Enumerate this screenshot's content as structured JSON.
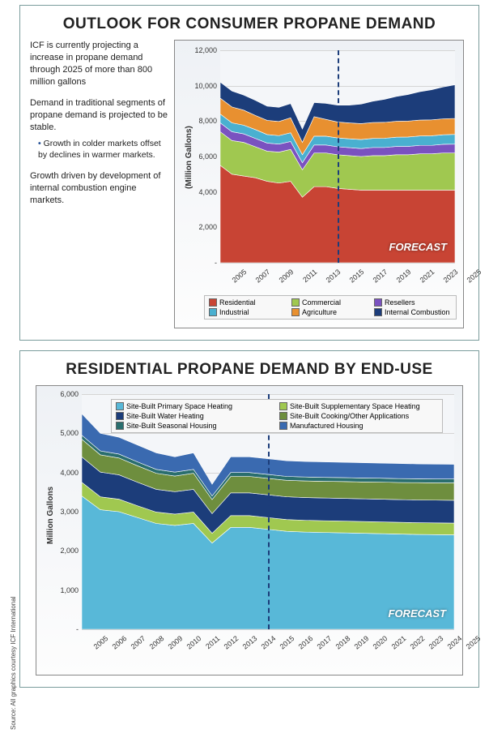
{
  "source_note": "Source: All graphics courtesy ICF International",
  "panel1": {
    "title": "OUTLOOK FOR CONSUMER PROPANE DEMAND",
    "para1": "ICF is currently projecting a increase in propane demand through 2025 of more than 800 million gallons",
    "para2": "Demand in traditional segments of propane demand is projected to be stable.",
    "bullet1": "Growth in colder markets offset by declines in warmer markets.",
    "para3": "Growth driven by development of internal combustion engine markets.",
    "chart": {
      "type": "stacked-area",
      "ylabel": "(Million Gallons)",
      "ylim": [
        0,
        12000
      ],
      "ytick_step": 2000,
      "years": [
        2005,
        2006,
        2007,
        2008,
        2009,
        2010,
        2011,
        2012,
        2013,
        2014,
        2015,
        2016,
        2017,
        2018,
        2019,
        2020,
        2021,
        2022,
        2023,
        2024,
        2025
      ],
      "xtick_years": [
        2005,
        2007,
        2009,
        2011,
        2013,
        2015,
        2017,
        2019,
        2021,
        2023,
        2025
      ],
      "forecast_start_year": 2015,
      "forecast_label": "FORECAST",
      "background_color": "#eef1f5",
      "grid_color": "#d5d5d5",
      "axis_fontsize": 9,
      "label_fontsize": 10,
      "legend_cols": 3,
      "series": [
        {
          "name": "Residential",
          "color": "#c84434",
          "values": [
            5500,
            5000,
            4900,
            4800,
            4600,
            4500,
            4600,
            3700,
            4300,
            4300,
            4200,
            4150,
            4100,
            4100,
            4100,
            4100,
            4100,
            4100,
            4100,
            4100,
            4100
          ]
        },
        {
          "name": "Commercial",
          "color": "#a0c850",
          "values": [
            1900,
            1900,
            1900,
            1750,
            1700,
            1750,
            1800,
            1550,
            1900,
            1900,
            1900,
            1900,
            1900,
            1950,
            1950,
            2000,
            2000,
            2050,
            2050,
            2100,
            2100
          ]
        },
        {
          "name": "Resellers",
          "color": "#7a52c0",
          "values": [
            500,
            500,
            480,
            470,
            460,
            450,
            450,
            400,
            450,
            450,
            450,
            450,
            450,
            460,
            460,
            470,
            470,
            480,
            480,
            490,
            500
          ]
        },
        {
          "name": "Industrial",
          "color": "#4ab0d0",
          "values": [
            500,
            500,
            490,
            500,
            480,
            480,
            490,
            450,
            500,
            500,
            500,
            500,
            510,
            510,
            520,
            520,
            530,
            530,
            540,
            540,
            550
          ]
        },
        {
          "name": "Agriculture",
          "color": "#e89030",
          "values": [
            900,
            900,
            850,
            800,
            800,
            800,
            850,
            700,
            1100,
            950,
            900,
            900,
            900,
            900,
            900,
            900,
            900,
            900,
            900,
            900,
            900
          ]
        },
        {
          "name": "Internal Combustion",
          "color": "#1c3d7a",
          "values": [
            900,
            900,
            850,
            850,
            800,
            800,
            800,
            750,
            800,
            900,
            950,
            1000,
            1100,
            1200,
            1300,
            1400,
            1500,
            1600,
            1700,
            1800,
            1900
          ]
        }
      ]
    }
  },
  "panel2": {
    "title": "RESIDENTIAL PROPANE DEMAND BY END-USE",
    "chart": {
      "type": "stacked-area",
      "ylabel": "Million Gallons",
      "ylim": [
        0,
        6000
      ],
      "ytick_step": 1000,
      "years": [
        2005,
        2006,
        2007,
        2008,
        2009,
        2010,
        2011,
        2012,
        2013,
        2014,
        2015,
        2016,
        2017,
        2018,
        2019,
        2020,
        2021,
        2022,
        2023,
        2024,
        2025
      ],
      "xtick_years": [
        2005,
        2006,
        2007,
        2008,
        2009,
        2010,
        2011,
        2012,
        2013,
        2014,
        2015,
        2016,
        2017,
        2018,
        2019,
        2020,
        2021,
        2022,
        2023,
        2024,
        2025
      ],
      "forecast_start_year": 2015,
      "forecast_label": "FORECAST",
      "background_color": "#eef1f5",
      "grid_color": "#d5d5d5",
      "axis_fontsize": 9,
      "label_fontsize": 10,
      "legend_cols": 2,
      "series": [
        {
          "name": "Site-Built Primary Space Heating",
          "color": "#58b8d8",
          "values": [
            3400,
            3050,
            3000,
            2850,
            2700,
            2650,
            2700,
            2200,
            2600,
            2600,
            2550,
            2500,
            2480,
            2470,
            2460,
            2450,
            2440,
            2430,
            2420,
            2415,
            2410
          ]
        },
        {
          "name": "Site-Built Supplementary Space Heating",
          "color": "#a0c850",
          "values": [
            350,
            330,
            320,
            300,
            290,
            290,
            290,
            250,
            300,
            300,
            300,
            300,
            300,
            300,
            300,
            300,
            300,
            300,
            300,
            300,
            300
          ]
        },
        {
          "name": "Site-Built Water Heating",
          "color": "#1c3d7a",
          "values": [
            650,
            630,
            620,
            600,
            580,
            570,
            580,
            500,
            580,
            580,
            580,
            580,
            580,
            580,
            580,
            580,
            580,
            580,
            580,
            580,
            580
          ]
        },
        {
          "name": "Site-Built Cooking/Other Applications",
          "color": "#6e8e3e",
          "values": [
            450,
            440,
            430,
            420,
            410,
            400,
            410,
            360,
            420,
            420,
            420,
            420,
            425,
            425,
            430,
            430,
            435,
            435,
            440,
            440,
            445
          ]
        },
        {
          "name": "Site-Built Seasonal Housing",
          "color": "#2a6e6e",
          "values": [
            100,
            100,
            100,
            100,
            100,
            100,
            100,
            90,
            100,
            100,
            100,
            100,
            100,
            100,
            100,
            100,
            100,
            100,
            100,
            100,
            100
          ]
        },
        {
          "name": "Manufactured Housing",
          "color": "#3a6ab0",
          "values": [
            550,
            450,
            430,
            430,
            420,
            390,
            420,
            300,
            400,
            400,
            400,
            400,
            395,
            395,
            390,
            390,
            385,
            385,
            380,
            380,
            375
          ]
        }
      ]
    }
  }
}
